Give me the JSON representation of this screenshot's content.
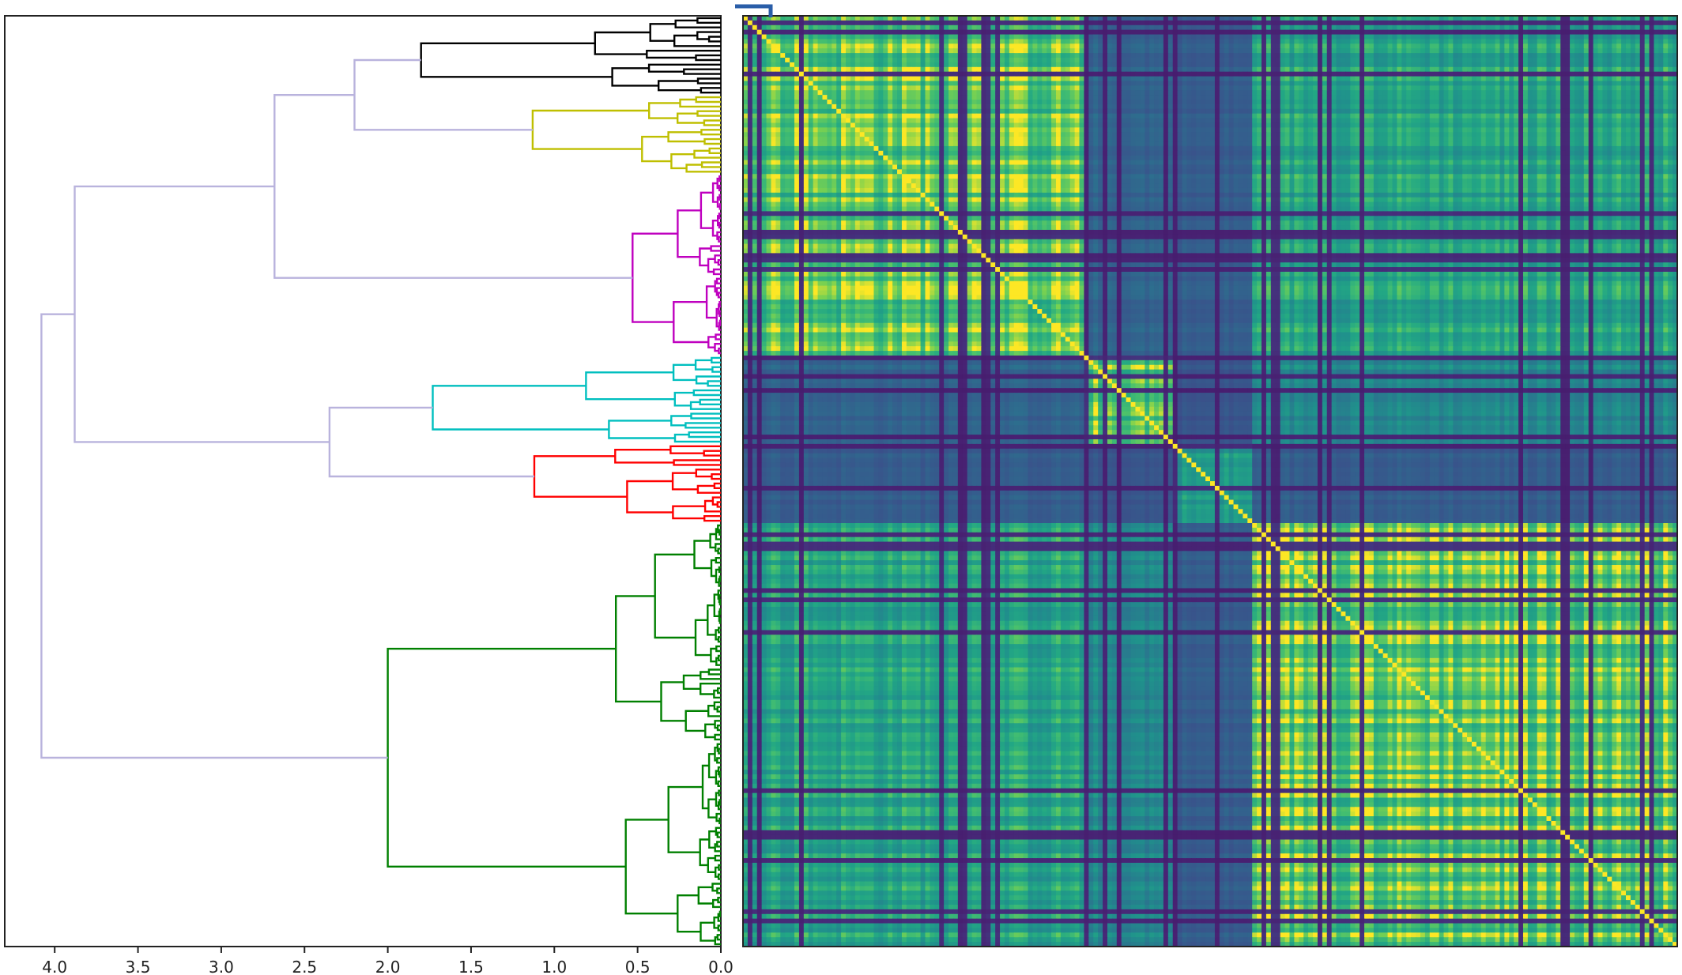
{
  "chart_data": [
    {
      "type": "dendrogram",
      "orientation": "left",
      "xaxis": {
        "ticks": [
          "4.0",
          "3.5",
          "3.0",
          "2.5",
          "2.0",
          "1.5",
          "1.0",
          "0.5",
          "0.0"
        ],
        "tick_values": [
          4.0,
          3.5,
          3.0,
          2.5,
          2.0,
          1.5,
          1.0,
          0.5,
          0.0
        ],
        "range": [
          4.3,
          0.0
        ],
        "reversed": true
      },
      "leaf_count": 200,
      "colors": {
        "above_threshold": "#b9b3dd",
        "cluster_black": "#000000",
        "cluster_yellow": "#bfbf00",
        "cluster_magenta": "#bf00bf",
        "cluster_cyan": "#00bfbf",
        "cluster_red": "#ff0000",
        "cluster_green": "#008000"
      },
      "clusters": [
        {
          "color": "cluster_black",
          "leaf_start": 0,
          "leaf_end": 17,
          "root_height": 1.8
        },
        {
          "color": "cluster_yellow",
          "leaf_start": 17,
          "leaf_end": 34,
          "root_height": 1.13
        },
        {
          "color": "cluster_magenta",
          "leaf_start": 34,
          "leaf_end": 73,
          "root_height": 0.53
        },
        {
          "color": "cluster_cyan",
          "leaf_start": 73,
          "leaf_end": 92,
          "root_height": 1.73
        },
        {
          "color": "cluster_red",
          "leaf_start": 92,
          "leaf_end": 109,
          "root_height": 1.12
        },
        {
          "color": "cluster_green",
          "leaf_start": 109,
          "leaf_end": 200,
          "root_height": 2.0
        }
      ],
      "merges_above_threshold": [
        {
          "children": [
            "black",
            "yellow"
          ],
          "height": 2.2
        },
        {
          "children": [
            "black+yellow",
            "magenta"
          ],
          "height": 2.68
        },
        {
          "children": [
            "cyan",
            "red"
          ],
          "height": 2.35
        },
        {
          "children": [
            "black+yellow+magenta",
            "cyan+red"
          ],
          "height": 3.88
        },
        {
          "children": [
            "all-upper",
            "green"
          ],
          "height": 4.08
        }
      ]
    },
    {
      "type": "heatmap",
      "colormap": "viridis",
      "rows": 200,
      "cols": 200,
      "note_values": "correlation-like similarity, reordered by dendrogram leaves",
      "diagonal_blocks": [
        {
          "start": 0,
          "end": 73,
          "level": "high"
        },
        {
          "start": 73,
          "end": 92,
          "level": "high"
        },
        {
          "start": 92,
          "end": 109,
          "level": "medium"
        },
        {
          "start": 109,
          "end": 200,
          "level": "high"
        }
      ]
    }
  ]
}
